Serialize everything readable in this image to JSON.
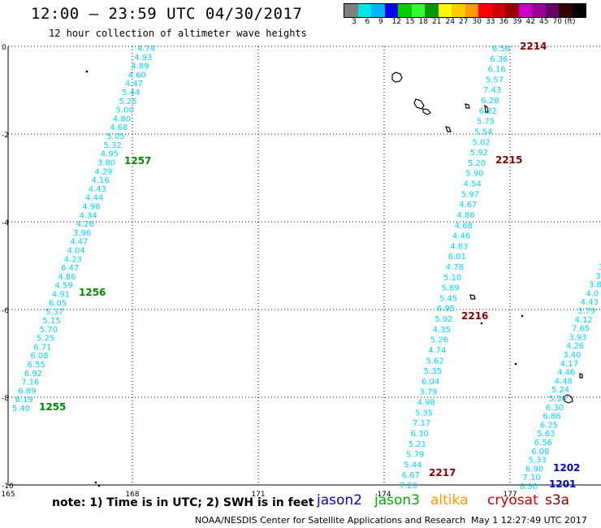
{
  "title": "12:00 – 23:59 UTC 04/30/2017",
  "subtitle": "12 hour collection of altimeter wave heights",
  "colorbar": {
    "colors": [
      "#7f7f7f",
      "#00e5e5",
      "#00b3ff",
      "#0000ff",
      "#00cc00",
      "#33ff33",
      "#009900",
      "#ffff00",
      "#ffcc00",
      "#ff9900",
      "#ff0000",
      "#cc0000",
      "#990000",
      "#cc00cc",
      "#990099",
      "#660066",
      "#330000",
      "#000000"
    ],
    "labels": [
      "3",
      "6",
      "9",
      "12",
      "15",
      "18",
      "21",
      "24",
      "27",
      "30",
      "33",
      "36",
      "39",
      "42",
      "45",
      "70",
      "(ft)"
    ]
  },
  "y_axis_labels": [
    "0",
    "-2",
    "-4",
    "-6",
    "-8",
    "-10"
  ],
  "x_axis_labels": [
    "165",
    "168",
    "171",
    "174",
    "177"
  ],
  "tracks": [
    {
      "name": "track-1",
      "color": "#00d4ff",
      "values": [
        "4.74",
        "4.93",
        "4.89",
        "4.60",
        "4.47",
        "5.44",
        "5.25",
        "5.00",
        "4.80",
        "4.68",
        "5.05",
        "5.32",
        "4.95",
        "3.80",
        "4.29",
        "4.16",
        "4.43",
        "4.44",
        "4.98",
        "4.34",
        "4.26",
        "3.96",
        "4.47",
        "4.04",
        "4.23",
        "6.47",
        "4.86",
        "4.59",
        "4.91",
        "6.05",
        "5.37",
        "5.15",
        "5.70",
        "5.25",
        "6.71",
        "6.08",
        "6.55",
        "6.92",
        "7.16",
        "6.89",
        "6.19",
        "5.40"
      ]
    },
    {
      "name": "track-2",
      "color": "#00d4ff",
      "values": [
        "6.56",
        "6.36",
        "6.16",
        "5.57",
        "7.43",
        "6.28",
        "6.32",
        "5.75",
        "5.54",
        "5.02",
        "5.92",
        "5.20",
        "5.90",
        "4.54",
        "5.97",
        "4.67",
        "4.86",
        "4.68",
        "4.46",
        "4.83",
        "6.01",
        "4.78",
        "5.10",
        "5.89",
        "5.45",
        "6.95",
        "5.92",
        "4.35",
        "5.26",
        "4.74",
        "5.62",
        "5.35",
        "6.04",
        "3.79",
        "4.98",
        "5.35",
        "7.17",
        "6.30",
        "5.21",
        "5.79",
        "5.44",
        "6.67",
        "7.20"
      ]
    },
    {
      "name": "track-3",
      "color": "#00d4ff",
      "values": [
        "3",
        "3",
        "3.8",
        "4.0",
        "4.43",
        "3.79",
        "4.12",
        "7.65",
        "3.93",
        "4.26",
        "3.40",
        "4.17",
        "4.46",
        "4.48",
        "5.24",
        "5.30",
        "6.30",
        "6.86",
        "6.25",
        "5.63",
        "6.56",
        "6.08",
        "5.33",
        "6.90",
        "7.10",
        "6.90"
      ]
    }
  ],
  "time_labels": [
    {
      "text": "1257",
      "color": "#008800"
    },
    {
      "text": "1256",
      "color": "#008800"
    },
    {
      "text": "1255",
      "color": "#008800"
    },
    {
      "text": "2214",
      "color": "#880000"
    },
    {
      "text": "2215",
      "color": "#880000"
    },
    {
      "text": "2216",
      "color": "#880000"
    },
    {
      "text": "2217",
      "color": "#880000"
    },
    {
      "text": "1202",
      "color": "#0000cc"
    },
    {
      "text": "1201",
      "color": "#0000cc"
    }
  ],
  "footer": {
    "note": "note: 1) Time is in UTC; 2) SWH is in feet",
    "legend": [
      {
        "text": "jason2",
        "color": "#0000cc"
      },
      {
        "text": "jason3",
        "color": "#00aa00"
      },
      {
        "text": "altika",
        "color": "#ff9900"
      },
      {
        "text": "cryosat",
        "color": "#cc0000"
      },
      {
        "text": "s3a",
        "color": "#880000"
      }
    ],
    "credit": "NOAA/NESDIS Center for Satellite Applications and Research",
    "stamp": "May  1 12:27:49 UTC 2017"
  }
}
